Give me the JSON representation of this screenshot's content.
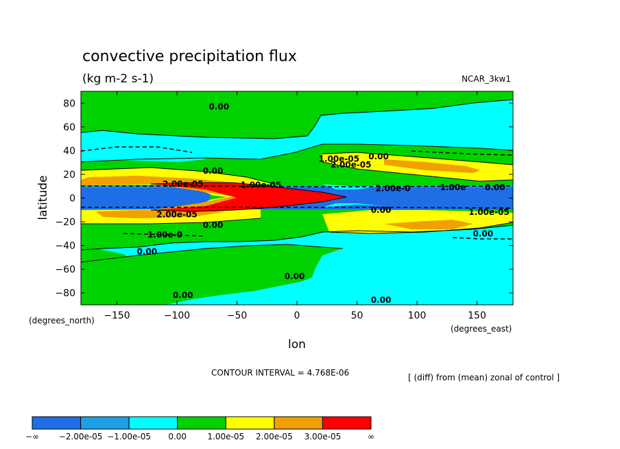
{
  "chart_data": {
    "type": "heatmap",
    "title": "convective precipitation flux",
    "units": "(kg m-2 s-1)",
    "model": "NCAR_3kw1",
    "xlabel": "lon",
    "xunits": "(degrees_east)",
    "ylabel": "latitude",
    "yunits": "(degrees_north)",
    "xlim": [
      -180,
      180
    ],
    "ylim": [
      -90,
      90
    ],
    "xticks": [
      -150,
      -100,
      -50,
      0,
      50,
      100,
      150
    ],
    "yticks": [
      80,
      60,
      40,
      20,
      0,
      -20,
      -40,
      -60,
      -80
    ],
    "contour_interval": "CONTOUR INTERVAL = 4.768E-06",
    "note": "[ (diff) from (mean) zonal of control ]",
    "colors": {
      "deep_blue": "#1e6ee6",
      "mid_blue": "#1ea0e6",
      "cyan": "#00ffff",
      "green": "#00d200",
      "yellow": "#ffff00",
      "orange": "#f0a000",
      "red": "#ff0000"
    },
    "levels": [
      {
        "color": "#1e6ee6"
      },
      {
        "color": "#1ea0e6"
      },
      {
        "color": "#00ffff"
      },
      {
        "color": "#00d200"
      },
      {
        "color": "#ffff00"
      },
      {
        "color": "#f0a000"
      },
      {
        "color": "#ff0000"
      }
    ],
    "colorbar_labels": [
      "-∞",
      "-2.00e-05",
      "-1.00e-05",
      "0.00",
      "1.00e-05",
      "2.00e-05",
      "3.00e-05",
      "∞"
    ],
    "contour_labels": [
      {
        "text": "0.00",
        "lon": -65,
        "lat": 77
      },
      {
        "text": "0.00",
        "lon": -70,
        "lat": 23
      },
      {
        "text": "1.00e-05",
        "lon": 35,
        "lat": 33
      },
      {
        "text": "2.00e-05",
        "lon": 45,
        "lat": 28
      },
      {
        "text": "0.00",
        "lon": 68,
        "lat": 35
      },
      {
        "text": "1.00e-05",
        "lon": -30,
        "lat": 11
      },
      {
        "text": "2.00e-05",
        "lon": -95,
        "lat": 12
      },
      {
        "text": "2.00e-0",
        "lon": 80,
        "lat": 8
      },
      {
        "text": "1.00e",
        "lon": 130,
        "lat": 9
      },
      {
        "text": "0.00",
        "lon": 165,
        "lat": 9
      },
      {
        "text": "0.00",
        "lon": 70,
        "lat": -10
      },
      {
        "text": "1.00e-05",
        "lon": 160,
        "lat": -12
      },
      {
        "text": "2.00e-05",
        "lon": -100,
        "lat": -14
      },
      {
        "text": "0.00",
        "lon": -70,
        "lat": -23
      },
      {
        "text": "1.00e-0",
        "lon": -110,
        "lat": -31
      },
      {
        "text": "0.00",
        "lon": 155,
        "lat": -30
      },
      {
        "text": "0.00",
        "lon": -125,
        "lat": -45
      },
      {
        "text": "0.00",
        "lon": -2,
        "lat": -66
      },
      {
        "text": "0.00",
        "lon": -95,
        "lat": -82
      },
      {
        "text": "0.00",
        "lon": 70,
        "lat": -86
      }
    ]
  }
}
